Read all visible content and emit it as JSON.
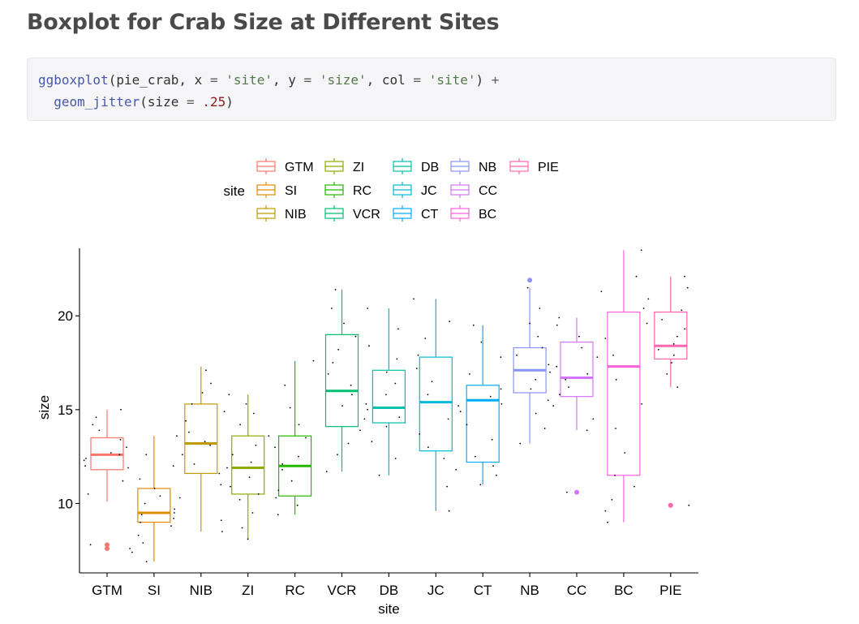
{
  "page": {
    "heading": "Boxplot for Crab Size at Different Sites"
  },
  "code": {
    "line1": [
      {
        "t": "ggboxplot",
        "c": "tk-fn"
      },
      {
        "t": "(pie_crab, ",
        "c": ""
      },
      {
        "t": "x",
        "c": ""
      },
      {
        "t": " = ",
        "c": "tk-op"
      },
      {
        "t": "'site'",
        "c": "tk-str"
      },
      {
        "t": ", ",
        "c": ""
      },
      {
        "t": "y",
        "c": ""
      },
      {
        "t": " = ",
        "c": "tk-op"
      },
      {
        "t": "'size'",
        "c": "tk-str"
      },
      {
        "t": ", ",
        "c": ""
      },
      {
        "t": "col",
        "c": ""
      },
      {
        "t": " = ",
        "c": "tk-op"
      },
      {
        "t": "'site'",
        "c": "tk-str"
      },
      {
        "t": ") ",
        "c": ""
      },
      {
        "t": "+",
        "c": "tk-op"
      }
    ],
    "line2": [
      {
        "t": "  ",
        "c": ""
      },
      {
        "t": "geom_jitter",
        "c": "tk-fn"
      },
      {
        "t": "(",
        "c": ""
      },
      {
        "t": "size",
        "c": ""
      },
      {
        "t": " = ",
        "c": "tk-op"
      },
      {
        "t": ".25",
        "c": "tk-num"
      },
      {
        "t": ")",
        "c": ""
      }
    ]
  },
  "chart_data": {
    "type": "boxplot",
    "xlabel": "site",
    "ylabel": "size",
    "ylim": [
      6.3,
      23.6
    ],
    "yticks": [
      10,
      15,
      20
    ],
    "grid": false,
    "legend": {
      "title": "site",
      "position": "top",
      "columns": [
        [
          "GTM",
          "SI",
          "NIB"
        ],
        [
          "ZI",
          "RC",
          "VCR"
        ],
        [
          "DB",
          "JC",
          "CT"
        ],
        [
          "NB",
          "CC",
          "BC"
        ],
        [
          "PIE"
        ]
      ]
    },
    "categories": [
      "GTM",
      "SI",
      "NIB",
      "ZI",
      "RC",
      "VCR",
      "DB",
      "JC",
      "CT",
      "NB",
      "CC",
      "BC",
      "PIE"
    ],
    "colors": [
      "#F8766D",
      "#E18A00",
      "#BE9C00",
      "#8CAB00",
      "#24B700",
      "#00BE70",
      "#00C1AB",
      "#00BBDA",
      "#00ACFC",
      "#8B93FF",
      "#D575FE",
      "#F962DD",
      "#FF65AC"
    ],
    "series": [
      {
        "site": "GTM",
        "min": 10.1,
        "q1": 11.8,
        "median": 12.6,
        "q3": 13.5,
        "max": 15.0,
        "outliers": [
          7.6,
          7.8
        ]
      },
      {
        "site": "SI",
        "min": 6.9,
        "q1": 9.0,
        "median": 9.5,
        "q3": 10.8,
        "max": 13.6,
        "outliers": []
      },
      {
        "site": "NIB",
        "min": 8.5,
        "q1": 11.6,
        "median": 13.2,
        "q3": 15.3,
        "max": 17.3,
        "outliers": []
      },
      {
        "site": "ZI",
        "min": 8.1,
        "q1": 10.5,
        "median": 11.9,
        "q3": 13.6,
        "max": 15.8,
        "outliers": []
      },
      {
        "site": "RC",
        "min": 9.4,
        "q1": 10.4,
        "median": 12.0,
        "q3": 13.6,
        "max": 17.6,
        "outliers": []
      },
      {
        "site": "VCR",
        "min": 11.7,
        "q1": 14.1,
        "median": 16.0,
        "q3": 19.0,
        "max": 21.4,
        "outliers": []
      },
      {
        "site": "DB",
        "min": 11.5,
        "q1": 14.3,
        "median": 15.1,
        "q3": 17.1,
        "max": 20.4,
        "outliers": []
      },
      {
        "site": "JC",
        "min": 9.6,
        "q1": 12.8,
        "median": 15.4,
        "q3": 17.8,
        "max": 20.9,
        "outliers": []
      },
      {
        "site": "CT",
        "min": 11.0,
        "q1": 12.2,
        "median": 15.5,
        "q3": 16.3,
        "max": 19.5,
        "outliers": []
      },
      {
        "site": "NB",
        "min": 13.2,
        "q1": 15.9,
        "median": 17.1,
        "q3": 18.3,
        "max": 21.5,
        "outliers": [
          21.9
        ]
      },
      {
        "site": "CC",
        "min": 13.9,
        "q1": 15.7,
        "median": 16.7,
        "q3": 18.6,
        "max": 19.9,
        "outliers": [
          10.6
        ]
      },
      {
        "site": "BC",
        "min": 9.0,
        "q1": 11.5,
        "median": 17.3,
        "q3": 20.2,
        "max": 23.5,
        "outliers": []
      },
      {
        "site": "PIE",
        "min": 16.2,
        "q1": 17.7,
        "median": 18.4,
        "q3": 20.2,
        "max": 22.1,
        "outliers": [
          9.9
        ]
      }
    ],
    "jitter_points": [
      [
        10.5,
        11.2,
        11.9,
        12.0,
        12.3,
        12.4,
        12.6,
        12.7,
        13.0,
        13.4,
        13.9,
        14.2,
        14.6,
        15.0,
        7.6,
        7.8
      ],
      [
        6.9,
        7.4,
        7.9,
        8.3,
        8.8,
        9.0,
        9.2,
        9.4,
        9.5,
        9.7,
        10.0,
        10.4,
        10.8,
        11.3,
        12.0,
        12.6,
        13.6
      ],
      [
        8.5,
        9.1,
        10.3,
        11.0,
        11.6,
        12.1,
        12.6,
        13.1,
        13.3,
        13.8,
        14.4,
        14.9,
        15.3,
        15.9,
        16.4,
        17.1
      ],
      [
        8.1,
        8.7,
        9.5,
        10.2,
        10.5,
        10.9,
        11.4,
        11.9,
        12.2,
        12.6,
        13.1,
        13.6,
        14.2,
        14.8,
        15.3,
        15.8
      ],
      [
        9.4,
        9.9,
        10.3,
        10.7,
        11.2,
        11.8,
        12.1,
        12.5,
        13.0,
        13.5,
        14.2,
        15.1,
        16.3,
        17.6
      ],
      [
        11.7,
        12.6,
        13.2,
        13.9,
        14.5,
        15.2,
        15.8,
        16.3,
        16.9,
        17.5,
        18.2,
        18.9,
        19.6,
        20.4,
        21.4
      ],
      [
        11.5,
        12.4,
        13.3,
        14.1,
        14.6,
        15.0,
        15.3,
        15.8,
        16.4,
        17.0,
        17.7,
        18.4,
        19.3,
        20.4
      ],
      [
        9.6,
        10.9,
        11.8,
        12.4,
        13.0,
        13.7,
        14.5,
        15.2,
        15.8,
        16.5,
        17.2,
        17.9,
        18.8,
        19.7,
        20.9
      ],
      [
        11.0,
        11.5,
        12.0,
        12.5,
        13.4,
        14.2,
        14.9,
        15.3,
        15.7,
        16.1,
        16.9,
        17.8,
        18.6,
        19.5
      ],
      [
        13.2,
        14.0,
        14.8,
        15.5,
        16.1,
        16.6,
        17.0,
        17.4,
        17.9,
        18.3,
        18.9,
        19.6,
        20.4,
        21.5
      ],
      [
        13.9,
        14.5,
        15.2,
        15.8,
        16.2,
        16.6,
        16.9,
        17.3,
        17.8,
        18.3,
        18.9,
        19.5,
        19.9,
        10.6
      ],
      [
        9.0,
        9.6,
        10.2,
        10.9,
        11.5,
        12.7,
        14.0,
        15.3,
        16.6,
        17.9,
        18.8,
        19.6,
        20.4,
        21.3,
        22.1,
        23.5
      ],
      [
        16.2,
        16.9,
        17.5,
        17.9,
        18.2,
        18.5,
        18.9,
        19.3,
        19.8,
        20.3,
        20.9,
        21.5,
        22.1,
        9.9
      ]
    ]
  }
}
